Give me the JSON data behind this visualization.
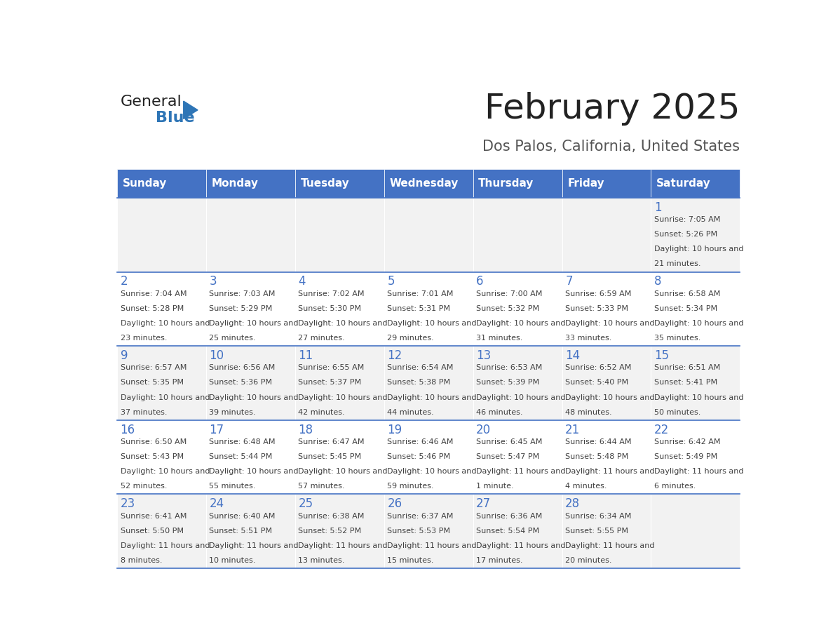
{
  "title": "February 2025",
  "subtitle": "Dos Palos, California, United States",
  "days_of_week": [
    "Sunday",
    "Monday",
    "Tuesday",
    "Wednesday",
    "Thursday",
    "Friday",
    "Saturday"
  ],
  "header_bg": "#4472C4",
  "header_text": "#FFFFFF",
  "cell_bg_light": "#F2F2F2",
  "cell_bg_white": "#FFFFFF",
  "day_number_color": "#4472C4",
  "info_text_color": "#404040",
  "border_color": "#4472C4",
  "title_color": "#222222",
  "subtitle_color": "#555555",
  "logo_general_color": "#222222",
  "logo_blue_color": "#2E75B6",
  "calendar_data": [
    [
      null,
      null,
      null,
      null,
      null,
      null,
      {
        "day": 1,
        "sunrise": "7:05 AM",
        "sunset": "5:26 PM",
        "daylight": "10 hours and 21 minutes."
      }
    ],
    [
      {
        "day": 2,
        "sunrise": "7:04 AM",
        "sunset": "5:28 PM",
        "daylight": "10 hours and 23 minutes."
      },
      {
        "day": 3,
        "sunrise": "7:03 AM",
        "sunset": "5:29 PM",
        "daylight": "10 hours and 25 minutes."
      },
      {
        "day": 4,
        "sunrise": "7:02 AM",
        "sunset": "5:30 PM",
        "daylight": "10 hours and 27 minutes."
      },
      {
        "day": 5,
        "sunrise": "7:01 AM",
        "sunset": "5:31 PM",
        "daylight": "10 hours and 29 minutes."
      },
      {
        "day": 6,
        "sunrise": "7:00 AM",
        "sunset": "5:32 PM",
        "daylight": "10 hours and 31 minutes."
      },
      {
        "day": 7,
        "sunrise": "6:59 AM",
        "sunset": "5:33 PM",
        "daylight": "10 hours and 33 minutes."
      },
      {
        "day": 8,
        "sunrise": "6:58 AM",
        "sunset": "5:34 PM",
        "daylight": "10 hours and 35 minutes."
      }
    ],
    [
      {
        "day": 9,
        "sunrise": "6:57 AM",
        "sunset": "5:35 PM",
        "daylight": "10 hours and 37 minutes."
      },
      {
        "day": 10,
        "sunrise": "6:56 AM",
        "sunset": "5:36 PM",
        "daylight": "10 hours and 39 minutes."
      },
      {
        "day": 11,
        "sunrise": "6:55 AM",
        "sunset": "5:37 PM",
        "daylight": "10 hours and 42 minutes."
      },
      {
        "day": 12,
        "sunrise": "6:54 AM",
        "sunset": "5:38 PM",
        "daylight": "10 hours and 44 minutes."
      },
      {
        "day": 13,
        "sunrise": "6:53 AM",
        "sunset": "5:39 PM",
        "daylight": "10 hours and 46 minutes."
      },
      {
        "day": 14,
        "sunrise": "6:52 AM",
        "sunset": "5:40 PM",
        "daylight": "10 hours and 48 minutes."
      },
      {
        "day": 15,
        "sunrise": "6:51 AM",
        "sunset": "5:41 PM",
        "daylight": "10 hours and 50 minutes."
      }
    ],
    [
      {
        "day": 16,
        "sunrise": "6:50 AM",
        "sunset": "5:43 PM",
        "daylight": "10 hours and 52 minutes."
      },
      {
        "day": 17,
        "sunrise": "6:48 AM",
        "sunset": "5:44 PM",
        "daylight": "10 hours and 55 minutes."
      },
      {
        "day": 18,
        "sunrise": "6:47 AM",
        "sunset": "5:45 PM",
        "daylight": "10 hours and 57 minutes."
      },
      {
        "day": 19,
        "sunrise": "6:46 AM",
        "sunset": "5:46 PM",
        "daylight": "10 hours and 59 minutes."
      },
      {
        "day": 20,
        "sunrise": "6:45 AM",
        "sunset": "5:47 PM",
        "daylight": "11 hours and 1 minute."
      },
      {
        "day": 21,
        "sunrise": "6:44 AM",
        "sunset": "5:48 PM",
        "daylight": "11 hours and 4 minutes."
      },
      {
        "day": 22,
        "sunrise": "6:42 AM",
        "sunset": "5:49 PM",
        "daylight": "11 hours and 6 minutes."
      }
    ],
    [
      {
        "day": 23,
        "sunrise": "6:41 AM",
        "sunset": "5:50 PM",
        "daylight": "11 hours and 8 minutes."
      },
      {
        "day": 24,
        "sunrise": "6:40 AM",
        "sunset": "5:51 PM",
        "daylight": "11 hours and 10 minutes."
      },
      {
        "day": 25,
        "sunrise": "6:38 AM",
        "sunset": "5:52 PM",
        "daylight": "11 hours and 13 minutes."
      },
      {
        "day": 26,
        "sunrise": "6:37 AM",
        "sunset": "5:53 PM",
        "daylight": "11 hours and 15 minutes."
      },
      {
        "day": 27,
        "sunrise": "6:36 AM",
        "sunset": "5:54 PM",
        "daylight": "11 hours and 17 minutes."
      },
      {
        "day": 28,
        "sunrise": "6:34 AM",
        "sunset": "5:55 PM",
        "daylight": "11 hours and 20 minutes."
      },
      null
    ]
  ]
}
